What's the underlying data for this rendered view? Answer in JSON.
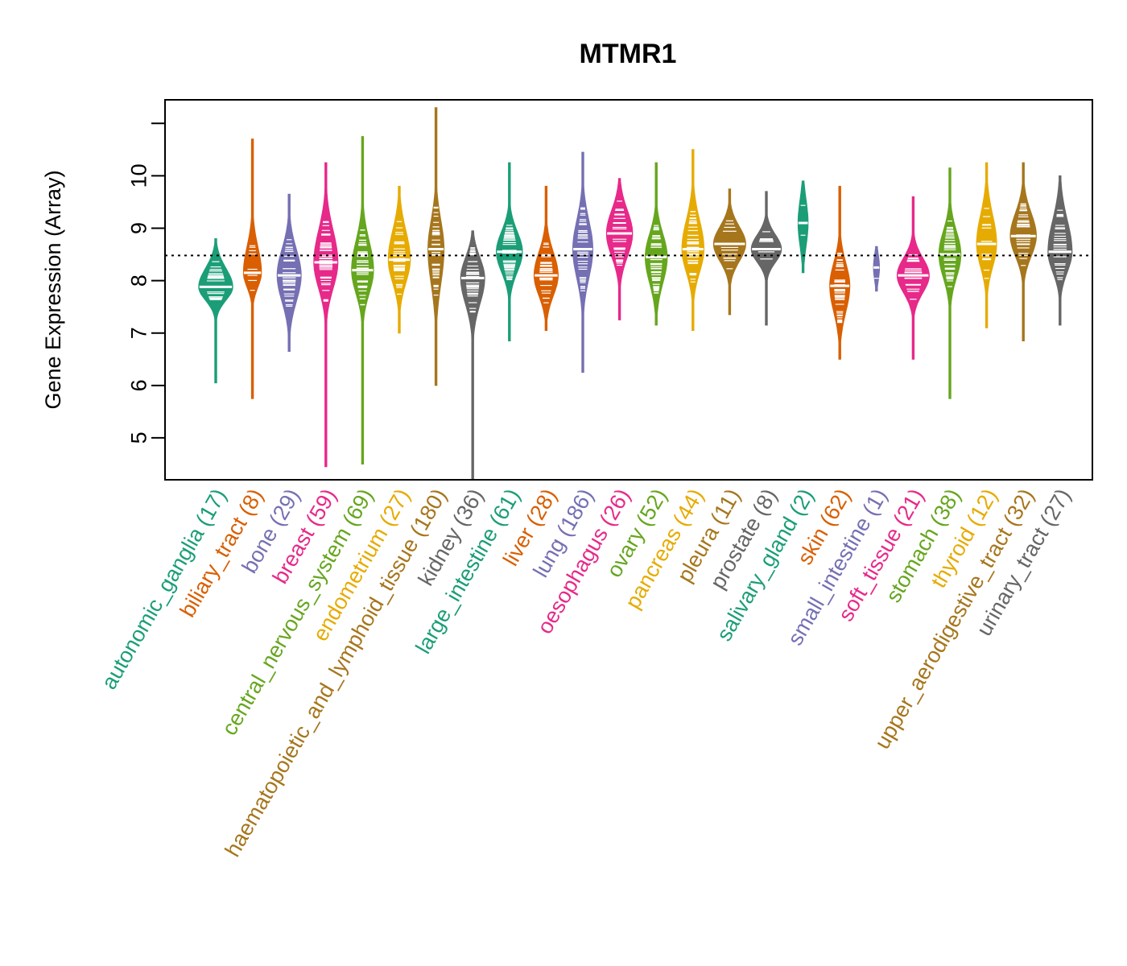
{
  "chart_data": {
    "type": "beanplot",
    "title": "MTMR1",
    "ylabel": "Gene Expression (Array)",
    "xlabel": "",
    "ylim": [
      4.2,
      11.45
    ],
    "yticks": [
      "5",
      "6",
      "7",
      "8",
      "9",
      "10"
    ],
    "reference_line": 8.48,
    "categories": [
      {
        "name": "autonomic_ganglia",
        "count": "17",
        "label": "autonomic_ganglia (17)",
        "color": "#1B9E77",
        "median": 7.88,
        "min": 6.05,
        "max": 8.8,
        "q1": 7.65,
        "q3": 8.2,
        "width": 0.85
      },
      {
        "name": "biliary_tract",
        "count": "8",
        "label": "biliary_tract (8)",
        "color": "#D95F02",
        "median": 8.15,
        "min": 5.75,
        "max": 10.7,
        "q1": 7.9,
        "q3": 8.6,
        "width": 0.45
      },
      {
        "name": "bone",
        "count": "29",
        "label": "bone (29)",
        "color": "#7570B3",
        "median": 8.1,
        "min": 6.65,
        "max": 9.65,
        "q1": 7.65,
        "q3": 8.55,
        "width": 0.6
      },
      {
        "name": "breast",
        "count": "59",
        "label": "breast (59)",
        "color": "#E7298A",
        "median": 8.35,
        "min": 4.45,
        "max": 10.25,
        "q1": 7.9,
        "q3": 8.9,
        "width": 0.6
      },
      {
        "name": "central_nervous_system",
        "count": "69",
        "label": "central_nervous_system (69)",
        "color": "#66A61E",
        "median": 8.2,
        "min": 4.5,
        "max": 10.75,
        "q1": 7.8,
        "q3": 8.7,
        "width": 0.55
      },
      {
        "name": "endometrium",
        "count": "27",
        "label": "endometrium (27)",
        "color": "#E6AB02",
        "median": 8.4,
        "min": 7.0,
        "max": 9.8,
        "q1": 8.0,
        "q3": 8.9,
        "width": 0.55
      },
      {
        "name": "haematopoietic_and_lymphoid_tissue",
        "count": "180",
        "label": "haematopoietic_and_lymphoid_tissue (180)",
        "color": "#A6761D",
        "median": 8.6,
        "min": 6.0,
        "max": 11.3,
        "q1": 8.0,
        "q3": 9.1,
        "width": 0.4
      },
      {
        "name": "kidney",
        "count": "36",
        "label": "kidney (36)",
        "color": "#666666",
        "median": 8.05,
        "min": 4.2,
        "max": 8.95,
        "q1": 7.6,
        "q3": 8.4,
        "width": 0.6
      },
      {
        "name": "large_intestine",
        "count": "61",
        "label": "large_intestine (61)",
        "color": "#1B9E77",
        "median": 8.55,
        "min": 6.85,
        "max": 10.25,
        "q1": 8.2,
        "q3": 8.9,
        "width": 0.65
      },
      {
        "name": "liver",
        "count": "28",
        "label": "liver (28)",
        "color": "#D95F02",
        "median": 8.1,
        "min": 7.05,
        "max": 9.8,
        "q1": 7.75,
        "q3": 8.5,
        "width": 0.6
      },
      {
        "name": "lung",
        "count": "186",
        "label": "lung (186)",
        "color": "#7570B3",
        "median": 8.6,
        "min": 6.25,
        "max": 10.45,
        "q1": 8.1,
        "q3": 9.1,
        "width": 0.5
      },
      {
        "name": "oesophagus",
        "count": "26",
        "label": "oesophagus (26)",
        "color": "#E7298A",
        "median": 8.9,
        "min": 7.25,
        "max": 9.95,
        "q1": 8.5,
        "q3": 9.3,
        "width": 0.65
      },
      {
        "name": "ovary",
        "count": "52",
        "label": "ovary (52)",
        "color": "#66A61E",
        "median": 8.45,
        "min": 7.15,
        "max": 10.25,
        "q1": 8.0,
        "q3": 8.85,
        "width": 0.55
      },
      {
        "name": "pancreas",
        "count": "44",
        "label": "pancreas (44)",
        "color": "#E6AB02",
        "median": 8.6,
        "min": 7.05,
        "max": 10.5,
        "q1": 8.2,
        "q3": 9.1,
        "width": 0.55
      },
      {
        "name": "pleura",
        "count": "11",
        "label": "pleura (11)",
        "color": "#A6761D",
        "median": 8.7,
        "min": 7.35,
        "max": 9.75,
        "q1": 8.4,
        "q3": 9.0,
        "width": 0.8
      },
      {
        "name": "prostate",
        "count": "8",
        "label": "prostate (8)",
        "color": "#666666",
        "median": 8.6,
        "min": 7.15,
        "max": 9.7,
        "q1": 8.4,
        "q3": 8.85,
        "width": 0.75
      },
      {
        "name": "salivary_gland",
        "count": "2",
        "label": "salivary_gland (2)",
        "color": "#1B9E77",
        "median": 9.1,
        "min": 8.15,
        "max": 9.9,
        "q1": 8.7,
        "q3": 9.5,
        "width": 0.25
      },
      {
        "name": "skin",
        "count": "62",
        "label": "skin (62)",
        "color": "#D95F02",
        "median": 7.9,
        "min": 6.5,
        "max": 9.8,
        "q1": 7.45,
        "q3": 8.3,
        "width": 0.5
      },
      {
        "name": "small_intestine",
        "count": "1",
        "label": "small_intestine (1)",
        "color": "#7570B3",
        "median": 8.25,
        "min": 7.8,
        "max": 8.65,
        "q1": 8.1,
        "q3": 8.4,
        "width": 0.15
      },
      {
        "name": "soft_tissue",
        "count": "21",
        "label": "soft_tissue (21)",
        "color": "#E7298A",
        "median": 8.1,
        "min": 6.5,
        "max": 9.6,
        "q1": 7.8,
        "q3": 8.4,
        "width": 0.8
      },
      {
        "name": "stomach",
        "count": "38",
        "label": "stomach (38)",
        "color": "#66A61E",
        "median": 8.5,
        "min": 5.75,
        "max": 10.15,
        "q1": 8.1,
        "q3": 8.9,
        "width": 0.55
      },
      {
        "name": "thyroid",
        "count": "12",
        "label": "thyroid (12)",
        "color": "#E6AB02",
        "median": 8.7,
        "min": 7.1,
        "max": 10.25,
        "q1": 8.3,
        "q3": 9.2,
        "width": 0.5
      },
      {
        "name": "upper_aerodigestive_tract",
        "count": "32",
        "label": "upper_aerodigestive_tract (32)",
        "color": "#A6761D",
        "median": 8.85,
        "min": 6.85,
        "max": 10.25,
        "q1": 8.5,
        "q3": 9.25,
        "width": 0.65
      },
      {
        "name": "urinary_tract",
        "count": "27",
        "label": "urinary_tract (27)",
        "color": "#666666",
        "median": 8.55,
        "min": 7.15,
        "max": 10.0,
        "q1": 8.2,
        "q3": 9.1,
        "width": 0.6
      }
    ]
  }
}
